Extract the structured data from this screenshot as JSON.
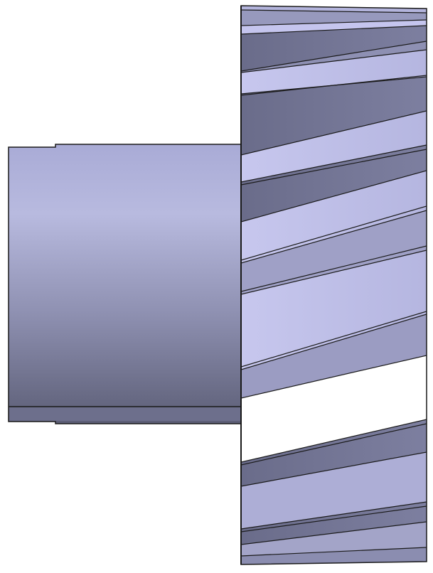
{
  "view": {
    "subject": "helical-gear-with-hub",
    "background_color": "#ffffff",
    "outline_color": "#1a1a1a"
  },
  "hub": {
    "light_color": "#b6b8e0",
    "dark_color": "#5c5e76"
  },
  "gear": {
    "face_light": "#c9c9f0",
    "face_mid": "#a3a4c8",
    "face_dark": "#6a6c8a"
  }
}
